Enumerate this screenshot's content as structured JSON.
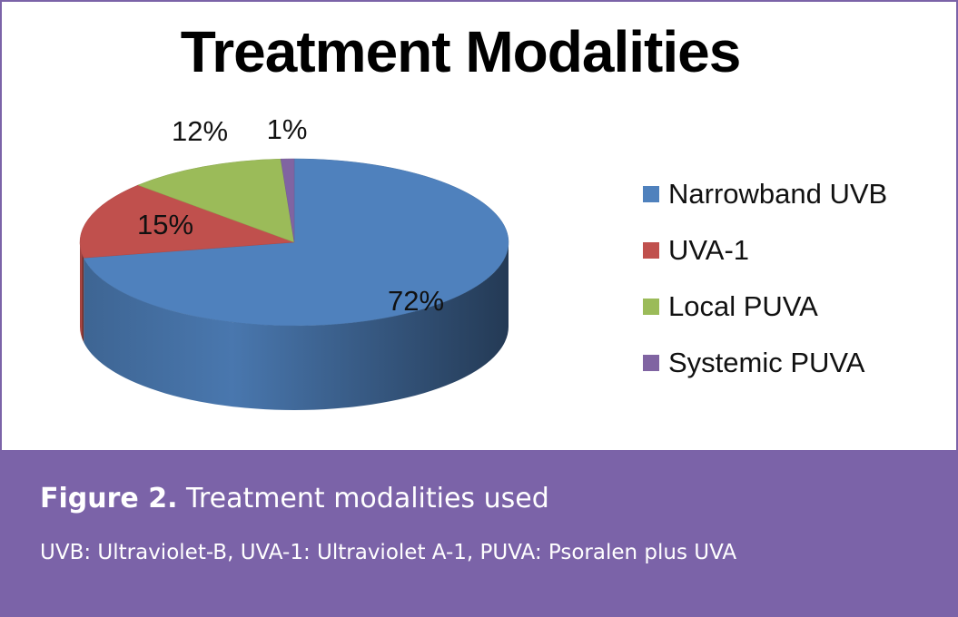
{
  "chart_data": {
    "type": "pie",
    "title": "Treatment Modalities",
    "categories": [
      "Narrowband UVB",
      "UVA-1",
      "Local PUVA",
      "Systemic PUVA"
    ],
    "values": [
      72,
      15,
      12,
      1
    ],
    "data_labels": [
      "72%",
      "15%",
      "12%",
      "1%"
    ],
    "colors": [
      "#4f81bd",
      "#c0504d",
      "#9bbb59",
      "#8064a2"
    ],
    "legend_position": "right",
    "style": "3d"
  },
  "caption": {
    "figure_label": "Figure 2.",
    "figure_text": "Treatment modalities used",
    "note": "UVB: Ultraviolet-B, UVA-1: Ultraviolet A-1, PUVA: Psoralen plus UVA"
  },
  "colors": {
    "frame": "#7b63a8",
    "caption_background": "#7b63a8"
  }
}
